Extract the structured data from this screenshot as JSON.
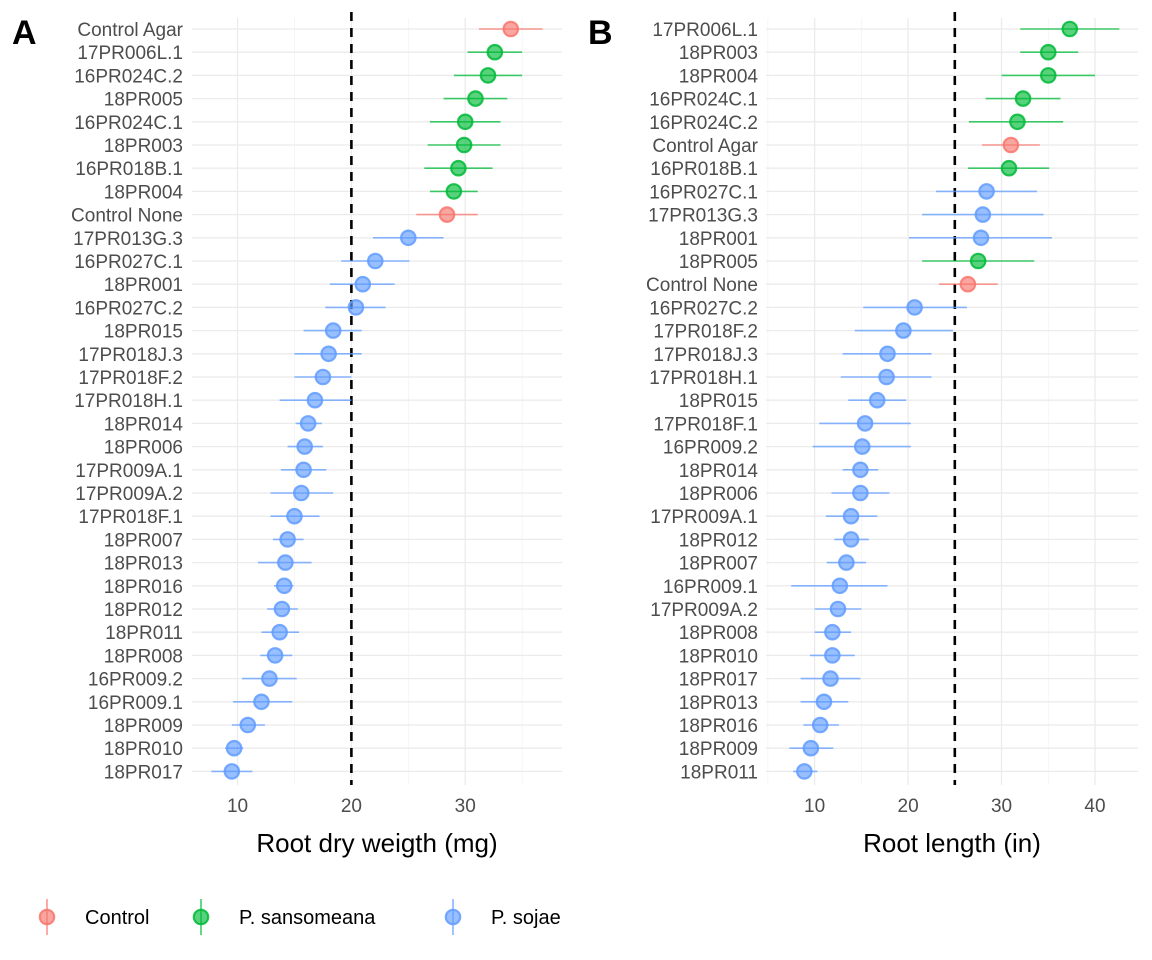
{
  "chart_data": [
    {
      "type": "scatter",
      "panel_label": "A",
      "xlabel": "Root dry weigth (mg)",
      "ylabel": "",
      "xlim": [
        6,
        38.5
      ],
      "xticks": [
        10,
        20,
        30
      ],
      "reference_line_x": 20,
      "grid": true,
      "points": [
        {
          "isolate": "Control Agar",
          "group": "Control",
          "mean": 34.0,
          "lower": 31.2,
          "upper": 36.8
        },
        {
          "isolate": "17PR006L.1",
          "group": "P. sansomeana",
          "mean": 32.6,
          "lower": 30.2,
          "upper": 35.0
        },
        {
          "isolate": "16PR024C.2",
          "group": "P. sansomeana",
          "mean": 32.0,
          "lower": 29.0,
          "upper": 35.0
        },
        {
          "isolate": "18PR005",
          "group": "P. sansomeana",
          "mean": 30.9,
          "lower": 28.1,
          "upper": 33.7
        },
        {
          "isolate": "16PR024C.1",
          "group": "P. sansomeana",
          "mean": 30.0,
          "lower": 26.9,
          "upper": 33.1
        },
        {
          "isolate": "18PR003",
          "group": "P. sansomeana",
          "mean": 29.9,
          "lower": 26.7,
          "upper": 33.1
        },
        {
          "isolate": "16PR018B.1",
          "group": "P. sansomeana",
          "mean": 29.4,
          "lower": 26.4,
          "upper": 32.4
        },
        {
          "isolate": "18PR004",
          "group": "P. sansomeana",
          "mean": 29.0,
          "lower": 26.9,
          "upper": 31.1
        },
        {
          "isolate": "Control None",
          "group": "Control",
          "mean": 28.4,
          "lower": 25.7,
          "upper": 31.1
        },
        {
          "isolate": "17PR013G.3",
          "group": "P. sojae",
          "mean": 25.0,
          "lower": 21.9,
          "upper": 28.1
        },
        {
          "isolate": "16PR027C.1",
          "group": "P. sojae",
          "mean": 22.1,
          "lower": 19.1,
          "upper": 25.1
        },
        {
          "isolate": "18PR001",
          "group": "P. sojae",
          "mean": 21.0,
          "lower": 18.1,
          "upper": 23.8
        },
        {
          "isolate": "16PR027C.2",
          "group": "P. sojae",
          "mean": 20.4,
          "lower": 17.7,
          "upper": 23.0
        },
        {
          "isolate": "18PR015",
          "group": "P. sojae",
          "mean": 18.4,
          "lower": 15.8,
          "upper": 20.9
        },
        {
          "isolate": "17PR018J.3",
          "group": "P. sojae",
          "mean": 18.0,
          "lower": 15.0,
          "upper": 20.9
        },
        {
          "isolate": "17PR018F.2",
          "group": "P. sojae",
          "mean": 17.5,
          "lower": 15.0,
          "upper": 20.0
        },
        {
          "isolate": "17PR018H.1",
          "group": "P. sojae",
          "mean": 16.8,
          "lower": 13.7,
          "upper": 20.0
        },
        {
          "isolate": "18PR014",
          "group": "P. sojae",
          "mean": 16.2,
          "lower": 15.1,
          "upper": 17.4
        },
        {
          "isolate": "18PR006",
          "group": "P. sojae",
          "mean": 15.9,
          "lower": 14.4,
          "upper": 17.5
        },
        {
          "isolate": "17PR009A.1",
          "group": "P. sojae",
          "mean": 15.8,
          "lower": 13.8,
          "upper": 17.8
        },
        {
          "isolate": "17PR009A.2",
          "group": "P. sojae",
          "mean": 15.6,
          "lower": 12.9,
          "upper": 18.4
        },
        {
          "isolate": "17PR018F.1",
          "group": "P. sojae",
          "mean": 15.0,
          "lower": 12.9,
          "upper": 17.2
        },
        {
          "isolate": "18PR007",
          "group": "P. sojae",
          "mean": 14.4,
          "lower": 13.1,
          "upper": 15.8
        },
        {
          "isolate": "18PR013",
          "group": "P. sojae",
          "mean": 14.2,
          "lower": 11.8,
          "upper": 16.5
        },
        {
          "isolate": "18PR016",
          "group": "P. sojae",
          "mean": 14.1,
          "lower": 13.2,
          "upper": 14.9
        },
        {
          "isolate": "18PR012",
          "group": "P. sojae",
          "mean": 13.9,
          "lower": 12.6,
          "upper": 15.3
        },
        {
          "isolate": "18PR011",
          "group": "P. sojae",
          "mean": 13.7,
          "lower": 12.1,
          "upper": 15.4
        },
        {
          "isolate": "18PR008",
          "group": "P. sojae",
          "mean": 13.3,
          "lower": 12.0,
          "upper": 14.8
        },
        {
          "isolate": "16PR009.2",
          "group": "P. sojae",
          "mean": 12.8,
          "lower": 10.4,
          "upper": 15.2
        },
        {
          "isolate": "16PR009.1",
          "group": "P. sojae",
          "mean": 12.1,
          "lower": 9.6,
          "upper": 14.8
        },
        {
          "isolate": "18PR009",
          "group": "P. sojae",
          "mean": 10.9,
          "lower": 9.5,
          "upper": 12.4
        },
        {
          "isolate": "18PR010",
          "group": "P. sojae",
          "mean": 9.7,
          "lower": 8.9,
          "upper": 10.5
        },
        {
          "isolate": "18PR017",
          "group": "P. sojae",
          "mean": 9.5,
          "lower": 7.7,
          "upper": 11.3
        }
      ]
    },
    {
      "type": "scatter",
      "panel_label": "B",
      "xlabel": "Root length (in)",
      "ylabel": "",
      "xlim": [
        4.8,
        44.6
      ],
      "xticks": [
        10,
        20,
        30,
        40
      ],
      "reference_line_x": 25,
      "grid": true,
      "points": [
        {
          "isolate": "17PR006L.1",
          "group": "P. sansomeana",
          "mean": 37.3,
          "lower": 32.0,
          "upper": 42.6
        },
        {
          "isolate": "18PR003",
          "group": "P. sansomeana",
          "mean": 35.0,
          "lower": 32.0,
          "upper": 38.2
        },
        {
          "isolate": "18PR004",
          "group": "P. sansomeana",
          "mean": 35.0,
          "lower": 30.0,
          "upper": 40.0
        },
        {
          "isolate": "16PR024C.1",
          "group": "P. sansomeana",
          "mean": 32.3,
          "lower": 28.3,
          "upper": 36.3
        },
        {
          "isolate": "16PR024C.2",
          "group": "P. sansomeana",
          "mean": 31.7,
          "lower": 26.5,
          "upper": 36.6
        },
        {
          "isolate": "Control Agar",
          "group": "Control",
          "mean": 31.0,
          "lower": 27.9,
          "upper": 34.1
        },
        {
          "isolate": "16PR018B.1",
          "group": "P. sansomeana",
          "mean": 30.8,
          "lower": 26.4,
          "upper": 35.1
        },
        {
          "isolate": "16PR027C.1",
          "group": "P. sojae",
          "mean": 28.4,
          "lower": 23.0,
          "upper": 33.8
        },
        {
          "isolate": "17PR013G.3",
          "group": "P. sojae",
          "mean": 28.0,
          "lower": 21.5,
          "upper": 34.5
        },
        {
          "isolate": "18PR001",
          "group": "P. sojae",
          "mean": 27.8,
          "lower": 20.1,
          "upper": 35.4
        },
        {
          "isolate": "18PR005",
          "group": "P. sansomeana",
          "mean": 27.5,
          "lower": 21.5,
          "upper": 33.5
        },
        {
          "isolate": "Control None",
          "group": "Control",
          "mean": 26.4,
          "lower": 23.3,
          "upper": 29.6
        },
        {
          "isolate": "16PR027C.2",
          "group": "P. sojae",
          "mean": 20.7,
          "lower": 15.2,
          "upper": 26.3
        },
        {
          "isolate": "17PR018F.2",
          "group": "P. sojae",
          "mean": 19.5,
          "lower": 14.3,
          "upper": 24.8
        },
        {
          "isolate": "17PR018J.3",
          "group": "P. sojae",
          "mean": 17.8,
          "lower": 13.0,
          "upper": 22.5
        },
        {
          "isolate": "17PR018H.1",
          "group": "P. sojae",
          "mean": 17.7,
          "lower": 12.8,
          "upper": 22.5
        },
        {
          "isolate": "18PR015",
          "group": "P. sojae",
          "mean": 16.7,
          "lower": 13.6,
          "upper": 19.8
        },
        {
          "isolate": "17PR018F.1",
          "group": "P. sojae",
          "mean": 15.4,
          "lower": 10.5,
          "upper": 20.3
        },
        {
          "isolate": "16PR009.2",
          "group": "P. sojae",
          "mean": 15.1,
          "lower": 9.8,
          "upper": 20.3
        },
        {
          "isolate": "18PR014",
          "group": "P. sojae",
          "mean": 14.9,
          "lower": 13.0,
          "upper": 16.8
        },
        {
          "isolate": "18PR006",
          "group": "P. sojae",
          "mean": 14.9,
          "lower": 11.8,
          "upper": 18.0
        },
        {
          "isolate": "17PR009A.1",
          "group": "P. sojae",
          "mean": 13.9,
          "lower": 11.2,
          "upper": 16.7
        },
        {
          "isolate": "18PR012",
          "group": "P. sojae",
          "mean": 13.9,
          "lower": 12.1,
          "upper": 15.8
        },
        {
          "isolate": "18PR007",
          "group": "P. sojae",
          "mean": 13.4,
          "lower": 11.3,
          "upper": 15.5
        },
        {
          "isolate": "16PR009.1",
          "group": "P. sojae",
          "mean": 12.7,
          "lower": 7.5,
          "upper": 17.8
        },
        {
          "isolate": "17PR009A.2",
          "group": "P. sojae",
          "mean": 12.5,
          "lower": 10.0,
          "upper": 15.0
        },
        {
          "isolate": "18PR008",
          "group": "P. sojae",
          "mean": 11.9,
          "lower": 10.0,
          "upper": 13.9
        },
        {
          "isolate": "18PR010",
          "group": "P. sojae",
          "mean": 11.9,
          "lower": 9.5,
          "upper": 14.3
        },
        {
          "isolate": "18PR017",
          "group": "P. sojae",
          "mean": 11.7,
          "lower": 8.5,
          "upper": 14.9
        },
        {
          "isolate": "18PR013",
          "group": "P. sojae",
          "mean": 11.0,
          "lower": 8.5,
          "upper": 13.6
        },
        {
          "isolate": "18PR016",
          "group": "P. sojae",
          "mean": 10.6,
          "lower": 8.8,
          "upper": 12.6
        },
        {
          "isolate": "18PR009",
          "group": "P. sojae",
          "mean": 9.6,
          "lower": 7.3,
          "upper": 12.0
        },
        {
          "isolate": "18PR011",
          "group": "P. sojae",
          "mean": 8.9,
          "lower": 7.7,
          "upper": 10.3
        }
      ]
    }
  ],
  "legend": {
    "position": "bottom-left",
    "items": [
      {
        "label": "Control",
        "color": "#F8766D"
      },
      {
        "label": "P. sansomeana",
        "color": "#00BA38"
      },
      {
        "label": "P. sojae",
        "color": "#619CFF"
      }
    ]
  }
}
